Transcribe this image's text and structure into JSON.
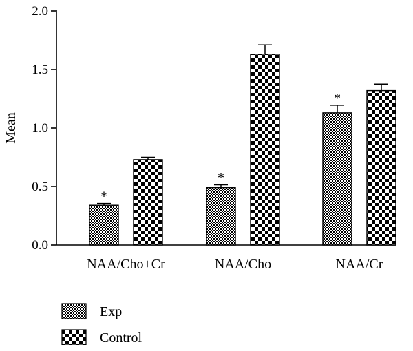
{
  "chart_data": {
    "type": "bar",
    "title": "",
    "xlabel": "",
    "ylabel": "Mean",
    "ylim": [
      0,
      2.0
    ],
    "yticks": [
      "0.0",
      "0.5",
      "1.0",
      "1.5",
      "2.0"
    ],
    "categories": [
      "NAA/Cho+Cr",
      "NAA/Cho",
      "NAA/Cr"
    ],
    "series": [
      {
        "name": "Exp",
        "pattern": "fine-checker",
        "values": [
          0.34,
          0.49,
          1.13
        ],
        "errors": [
          0.015,
          0.025,
          0.065
        ],
        "significance": [
          "*",
          "*",
          "*"
        ]
      },
      {
        "name": "Control",
        "pattern": "coarse-checker",
        "values": [
          0.73,
          1.63,
          1.32
        ],
        "errors": [
          0.02,
          0.08,
          0.055
        ],
        "significance": [
          "",
          "",
          ""
        ]
      }
    ],
    "legend_position": "bottom-left",
    "grid": false,
    "colors": {
      "ink": "#000000",
      "background": "#ffffff"
    }
  }
}
